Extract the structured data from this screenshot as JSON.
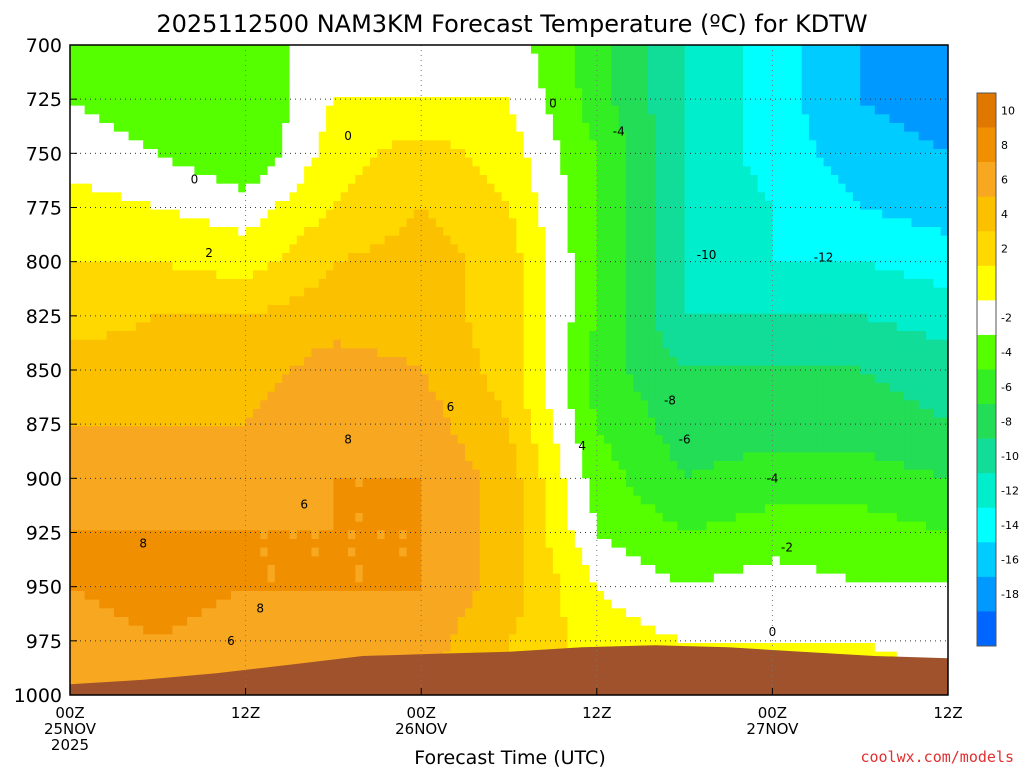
{
  "chart_data": {
    "type": "heatmap",
    "title": "2025112500 NAM3KM Forecast Temperature (ºC) for KDTW",
    "xlabel": "Forecast Time (UTC)",
    "ylabel": "",
    "credit": "coolwx.com/models",
    "x_hours": [
      0,
      6,
      12,
      18,
      24,
      30,
      36,
      42,
      48,
      54,
      60
    ],
    "xlim": [
      0,
      60
    ],
    "x_ticks": [
      {
        "hour": 0,
        "lines": [
          "00Z",
          "25NOV",
          "2025"
        ]
      },
      {
        "hour": 12,
        "lines": [
          "12Z"
        ]
      },
      {
        "hour": 24,
        "lines": [
          "00Z",
          "26NOV"
        ]
      },
      {
        "hour": 36,
        "lines": [
          "12Z"
        ]
      },
      {
        "hour": 48,
        "lines": [
          "00Z",
          "27NOV"
        ]
      },
      {
        "hour": 60,
        "lines": [
          "12Z"
        ]
      }
    ],
    "y_levels": [
      700,
      725,
      750,
      775,
      800,
      825,
      850,
      875,
      900,
      925,
      950,
      975,
      1000
    ],
    "ylim": [
      1000,
      700
    ],
    "temperature_grid": [
      [
        -3,
        -4,
        -3,
        -1,
        -1,
        -1,
        -5,
        -10,
        -13,
        -16,
        -18
      ],
      [
        -2,
        -3,
        -4,
        0,
        0,
        0,
        -5,
        -10,
        -13,
        -16,
        -17
      ],
      [
        -1,
        -2,
        -4,
        1,
        3,
        1,
        -4,
        -10,
        -13,
        -15,
        -16
      ],
      [
        1,
        0,
        -1,
        2,
        4,
        2,
        -4,
        -10,
        -12,
        -14,
        -15
      ],
      [
        2,
        2,
        1,
        4,
        5,
        3,
        -4,
        -10,
        -12,
        -12,
        -13
      ],
      [
        3,
        4,
        4,
        5,
        5,
        3,
        -4,
        -10,
        -10,
        -10,
        -11
      ],
      [
        5,
        5,
        5,
        7,
        6,
        3,
        -5,
        -8,
        -8,
        -8,
        -9
      ],
      [
        6,
        6,
        6,
        8,
        7,
        4,
        -4,
        -7,
        -7,
        -7,
        -8
      ],
      [
        7,
        8,
        7,
        8,
        8,
        5,
        -3,
        -6,
        -5,
        -5,
        -6
      ],
      [
        8,
        8,
        8,
        8,
        8,
        5,
        -2,
        -4,
        -3,
        -3,
        -4
      ],
      [
        8,
        9,
        8,
        8,
        8,
        5,
        0,
        -2,
        -1,
        -2,
        -2
      ],
      [
        7,
        8,
        7,
        7,
        7,
        4,
        1,
        0,
        0,
        0,
        -1
      ],
      [
        6,
        6,
        6,
        6,
        6,
        4,
        2,
        1,
        1,
        1,
        1
      ]
    ],
    "terrain_pressure": [
      995,
      993,
      990,
      986,
      982,
      981,
      980,
      978,
      977,
      978,
      980,
      982,
      983
    ],
    "contour_labels": [
      {
        "text": "0",
        "hour": 8.5,
        "level": 762
      },
      {
        "text": "0",
        "hour": 19,
        "level": 742
      },
      {
        "text": "0",
        "hour": 33,
        "level": 727
      },
      {
        "text": "0",
        "hour": 48,
        "level": 971
      },
      {
        "text": "2",
        "hour": 9.5,
        "level": 796
      },
      {
        "text": "-4",
        "hour": 37.5,
        "level": 740
      },
      {
        "text": "-10",
        "hour": 43.5,
        "level": 797
      },
      {
        "text": "-12",
        "hour": 51.5,
        "level": 798
      },
      {
        "text": "6",
        "hour": 26,
        "level": 867
      },
      {
        "text": "8",
        "hour": 19,
        "level": 882
      },
      {
        "text": "4",
        "hour": 35,
        "level": 885
      },
      {
        "text": "-8",
        "hour": 41,
        "level": 864
      },
      {
        "text": "-6",
        "hour": 42,
        "level": 882
      },
      {
        "text": "6",
        "hour": 16,
        "level": 912
      },
      {
        "text": "8",
        "hour": 5,
        "level": 930
      },
      {
        "text": "8",
        "hour": 13,
        "level": 960
      },
      {
        "text": "6",
        "hour": 11,
        "level": 975
      },
      {
        "text": "-4",
        "hour": 48,
        "level": 900
      },
      {
        "text": "-2",
        "hour": 49,
        "level": 932
      }
    ],
    "colorbar": [
      {
        "label": "10",
        "color": "#e07800"
      },
      {
        "label": "8",
        "color": "#f09000"
      },
      {
        "label": "6",
        "color": "#f8a820"
      },
      {
        "label": "4",
        "color": "#fbc000"
      },
      {
        "label": "2",
        "color": "#ffd800"
      },
      {
        "label": "",
        "color": "#ffff00"
      },
      {
        "label": "-2",
        "color": "#ffffff"
      },
      {
        "label": "-4",
        "color": "#55ff00"
      },
      {
        "label": "-6",
        "color": "#33ee22"
      },
      {
        "label": "-8",
        "color": "#22dd55"
      },
      {
        "label": "-10",
        "color": "#11dd99"
      },
      {
        "label": "-12",
        "color": "#00eecc"
      },
      {
        "label": "-14",
        "color": "#00ffff"
      },
      {
        "label": "-16",
        "color": "#00ccff"
      },
      {
        "label": "-18",
        "color": "#0099ff"
      },
      {
        "label": "",
        "color": "#0066ff"
      }
    ],
    "colorbar_labels": [
      "10",
      "8",
      "6",
      "4",
      "2",
      "-2",
      "-4",
      "-6",
      "-8",
      "-10",
      "-12",
      "-14",
      "-16",
      "-18"
    ],
    "colors": {
      "terrain": "#a0522d",
      "zero_contour": "#b0006a",
      "credit": "#e03030"
    }
  }
}
